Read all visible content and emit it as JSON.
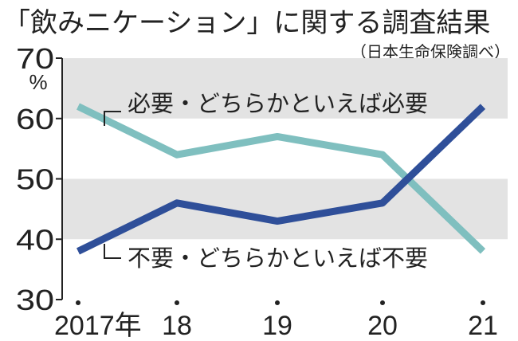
{
  "chart_data": {
    "type": "line",
    "title": "「飲みニケーション」に関する調査結果",
    "source": "（日本生命保険調べ）",
    "unit": "%",
    "categories": [
      "2017年",
      "18",
      "19",
      "20",
      "21"
    ],
    "ylim": [
      30,
      70
    ],
    "yticks": [
      "30",
      "40",
      "50",
      "60",
      "70"
    ],
    "grid": "alternating horizontal bands",
    "series": [
      {
        "name": "必要・どちらかといえば必要",
        "color": "#7fbfbf",
        "values": [
          62,
          54,
          57,
          54,
          38
        ]
      },
      {
        "name": "不要・どちらかといえば不要",
        "color": "#2f4f99",
        "values": [
          38,
          46,
          43,
          46,
          62
        ]
      }
    ]
  }
}
